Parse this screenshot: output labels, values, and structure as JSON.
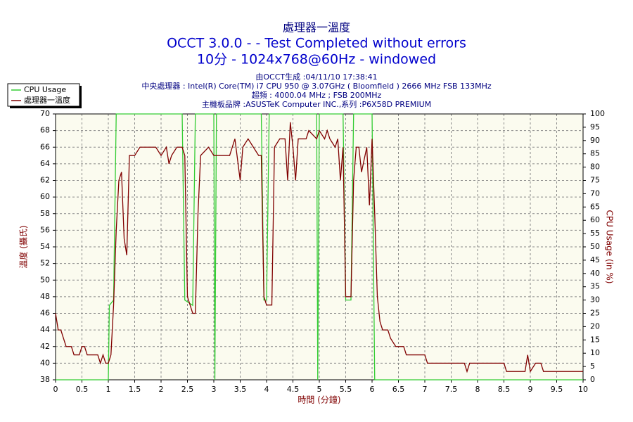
{
  "chart_data": {
    "type": "line",
    "title": "處理器一溫度",
    "subtitle_lines": [
      "OCCT 3.0.0 -  - Test Completed without errors",
      "10分 - 1024x768@60Hz - windowed"
    ],
    "info_lines": [
      "由OCCT生成 :04/11/10 17:38:41",
      "中央處理器 : Intel(R) Core(TM) i7 CPU 950 @ 3.07GHz ( Bloomfield ) 2666 MHz FSB 133MHz",
      "超頻 : 4000.04 MHz ; FSB 200MHz",
      "主機板品牌 :ASUSTeK Computer INC.,系列 :P6X58D PREMIUM"
    ],
    "x_label": "時間 (分鐘)",
    "y_label": "溫度 (攝氏)",
    "y2_label": "CPU Usage (in %)",
    "xlim": [
      0,
      10
    ],
    "xticks": [
      0,
      0.5,
      1,
      1.5,
      2,
      2.5,
      3,
      3.5,
      4,
      4.5,
      5,
      5.5,
      6,
      6.5,
      7,
      7.5,
      8,
      8.5,
      9,
      9.5,
      10
    ],
    "ylim": [
      38,
      70
    ],
    "yticks": [
      38,
      40,
      42,
      44,
      46,
      48,
      50,
      52,
      54,
      56,
      58,
      60,
      62,
      64,
      66,
      68,
      70
    ],
    "y2lim": [
      0,
      100
    ],
    "y2ticks": [
      0,
      5,
      10,
      15,
      20,
      25,
      30,
      35,
      40,
      45,
      50,
      55,
      60,
      65,
      70,
      75,
      80,
      85,
      90,
      95,
      100
    ],
    "grid": true,
    "legend": "top-left",
    "series": [
      {
        "name": "CPU Usage",
        "color": "#33cc33",
        "axis": "y2",
        "x": [
          0,
          1.0,
          1.02,
          1.1,
          1.15,
          2.4,
          2.45,
          2.6,
          2.65,
          3.0,
          3.02,
          3.05,
          3.9,
          3.95,
          4.0,
          4.05,
          4.95,
          4.97,
          5.0,
          5.45,
          5.5,
          5.6,
          5.65,
          6.0,
          6.05,
          10
        ],
        "values": [
          0,
          0,
          28,
          30,
          100,
          100,
          30,
          28,
          100,
          100,
          0,
          100,
          100,
          30,
          30,
          100,
          100,
          0,
          100,
          100,
          30,
          30,
          100,
          100,
          0,
          0
        ]
      },
      {
        "name": "處理器一溫度",
        "color": "#800000",
        "x": [
          0,
          0.05,
          0.1,
          0.15,
          0.2,
          0.3,
          0.35,
          0.45,
          0.5,
          0.55,
          0.6,
          0.8,
          0.85,
          0.9,
          0.95,
          1.0,
          1.05,
          1.1,
          1.15,
          1.2,
          1.25,
          1.3,
          1.35,
          1.4,
          1.5,
          1.6,
          1.9,
          2.0,
          2.1,
          2.15,
          2.2,
          2.3,
          2.4,
          2.45,
          2.5,
          2.55,
          2.6,
          2.65,
          2.7,
          2.75,
          2.9,
          3.0,
          3.3,
          3.4,
          3.5,
          3.55,
          3.65,
          3.75,
          3.85,
          3.9,
          3.95,
          4.0,
          4.1,
          4.15,
          4.25,
          4.35,
          4.4,
          4.45,
          4.5,
          4.55,
          4.6,
          4.75,
          4.8,
          4.95,
          5.0,
          5.1,
          5.15,
          5.2,
          5.3,
          5.35,
          5.4,
          5.45,
          5.5,
          5.6,
          5.65,
          5.7,
          5.75,
          5.8,
          5.9,
          5.95,
          6.0,
          6.05,
          6.1,
          6.15,
          6.2,
          6.3,
          6.35,
          6.45,
          6.6,
          6.65,
          7.0,
          7.05,
          7.75,
          7.8,
          7.85,
          8.5,
          8.55,
          8.9,
          8.95,
          9.0,
          9.1,
          9.2,
          9.25,
          9.5,
          10
        ],
        "values": [
          46,
          44,
          44,
          43,
          42,
          42,
          41,
          41,
          42,
          42,
          41,
          41,
          40,
          41,
          40,
          40,
          41,
          47,
          56,
          62,
          63,
          55,
          53,
          65,
          65,
          66,
          66,
          65,
          66,
          64,
          65,
          66,
          66,
          65,
          48,
          47,
          46,
          46,
          58,
          65,
          66,
          65,
          65,
          67,
          62,
          66,
          67,
          66,
          65,
          65,
          48,
          47,
          47,
          66,
          67,
          67,
          62,
          69,
          66,
          62,
          67,
          67,
          68,
          67,
          68,
          67,
          68,
          67,
          66,
          67,
          62,
          66,
          48,
          48,
          62,
          66,
          66,
          63,
          66,
          59,
          67,
          58,
          48,
          45,
          44,
          44,
          43,
          42,
          42,
          41,
          41,
          40,
          40,
          39,
          40,
          40,
          39,
          39,
          41,
          39,
          40,
          40,
          39,
          39,
          39
        ]
      }
    ]
  }
}
